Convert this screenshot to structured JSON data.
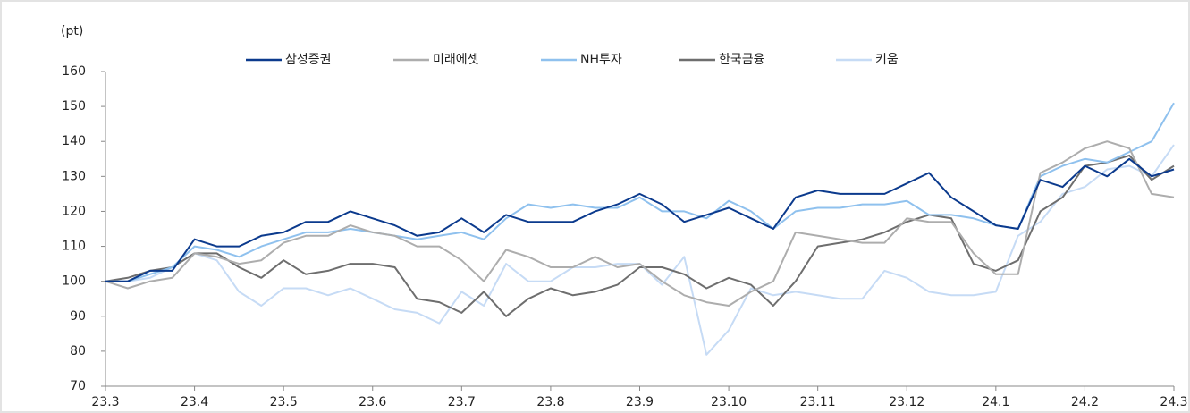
{
  "chart_data": {
    "type": "line",
    "y_unit": "(pt)",
    "categories": [
      "23.3",
      null,
      null,
      null,
      "23.4",
      null,
      null,
      null,
      "23.5",
      null,
      null,
      null,
      "23.6",
      null,
      null,
      null,
      "23.7",
      null,
      null,
      null,
      "23.8",
      null,
      null,
      null,
      "23.9",
      null,
      null,
      null,
      "23.10",
      null,
      null,
      null,
      "23.11",
      null,
      null,
      null,
      "23.12",
      null,
      null,
      null,
      "24.1",
      null,
      null,
      null,
      "24.2",
      null,
      null,
      null,
      "24.3"
    ],
    "series": [
      {
        "name": "삼성증권",
        "color": "#0b3a8d",
        "values": [
          100,
          100,
          103,
          103,
          112,
          110,
          110,
          113,
          114,
          117,
          117,
          120,
          118,
          116,
          113,
          114,
          118,
          114,
          119,
          117,
          117,
          117,
          120,
          122,
          125,
          122,
          117,
          119,
          121,
          118,
          115,
          124,
          126,
          125,
          125,
          125,
          128,
          131,
          124,
          120,
          116,
          115,
          129,
          127,
          133,
          130,
          135,
          130,
          132
        ]
      },
      {
        "name": "미래에셋",
        "color": "#adadad",
        "values": [
          100,
          98,
          100,
          101,
          108,
          107,
          105,
          106,
          111,
          113,
          113,
          116,
          114,
          113,
          110,
          110,
          106,
          100,
          109,
          107,
          104,
          104,
          107,
          104,
          105,
          100,
          96,
          94,
          93,
          97,
          100,
          114,
          113,
          112,
          111,
          111,
          118,
          117,
          117,
          108,
          102,
          102,
          131,
          134,
          138,
          140,
          138,
          125,
          124
        ]
      },
      {
        "name": "NH투자",
        "color": "#8fc1ee",
        "values": [
          100,
          100,
          102,
          104,
          110,
          109,
          107,
          110,
          112,
          114,
          114,
          115,
          114,
          113,
          112,
          113,
          114,
          112,
          118,
          122,
          121,
          122,
          121,
          121,
          124,
          120,
          120,
          118,
          123,
          120,
          115,
          120,
          121,
          121,
          122,
          122,
          123,
          119,
          119,
          118,
          116,
          115,
          130,
          133,
          135,
          134,
          137,
          140,
          151
        ]
      },
      {
        "name": "한국금융",
        "color": "#6e6e6e",
        "values": [
          100,
          101,
          103,
          104,
          108,
          108,
          104,
          101,
          106,
          102,
          103,
          105,
          105,
          104,
          95,
          94,
          91,
          97,
          90,
          95,
          98,
          96,
          97,
          99,
          104,
          104,
          102,
          98,
          101,
          99,
          93,
          100,
          110,
          111,
          112,
          114,
          117,
          119,
          118,
          105,
          103,
          106,
          120,
          124,
          133,
          134,
          136,
          129,
          133
        ]
      },
      {
        "name": "키움",
        "color": "#c6dbf5",
        "values": [
          100,
          100,
          101,
          104,
          108,
          106,
          97,
          93,
          98,
          98,
          96,
          98,
          95,
          92,
          91,
          88,
          97,
          93,
          105,
          100,
          100,
          104,
          104,
          105,
          105,
          99,
          107,
          79,
          86,
          98,
          96,
          97,
          96,
          95,
          95,
          103,
          101,
          97,
          96,
          96,
          97,
          113,
          117,
          125,
          127,
          132,
          133,
          130,
          139
        ]
      }
    ],
    "ylim": [
      70,
      160
    ],
    "yticks": [
      70,
      80,
      90,
      100,
      110,
      120,
      130,
      140,
      150,
      160
    ],
    "grid": false
  }
}
